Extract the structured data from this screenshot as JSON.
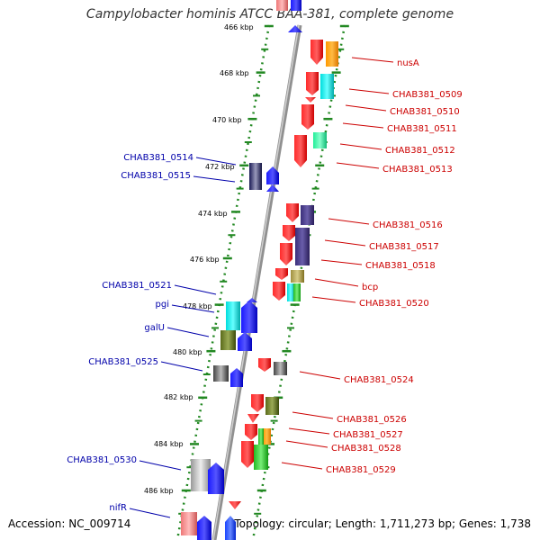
{
  "title": "Campylobacter hominis ATCC BAA-381, complete genome",
  "accession_label": "Accession: NC_009714",
  "summary_label": "Topology: circular; Length: 1,711,273 bp; Genes: 1,738",
  "colors": {
    "forward_label": "#cc0000",
    "reverse_label": "#0000aa",
    "backbone": "#909090",
    "tick": "#228822"
  },
  "ticks": [
    {
      "label": "466 kbp"
    },
    {
      "label": "468 kbp"
    },
    {
      "label": "470 kbp"
    },
    {
      "label": "472 kbp"
    },
    {
      "label": "474 kbp"
    },
    {
      "label": "476 kbp"
    },
    {
      "label": "478 kbp"
    },
    {
      "label": "480 kbp"
    },
    {
      "label": "482 kbp"
    },
    {
      "label": "484 kbp"
    },
    {
      "label": "486 kbp"
    }
  ],
  "forward_genes": [
    {
      "name": "nusA"
    },
    {
      "name": "CHAB381_0509"
    },
    {
      "name": "CHAB381_0510"
    },
    {
      "name": "CHAB381_0511"
    },
    {
      "name": "CHAB381_0512"
    },
    {
      "name": "CHAB381_0513"
    },
    {
      "name": "CHAB381_0516"
    },
    {
      "name": "CHAB381_0517"
    },
    {
      "name": "CHAB381_0518"
    },
    {
      "name": "bcp"
    },
    {
      "name": "CHAB381_0520"
    },
    {
      "name": "CHAB381_0524"
    },
    {
      "name": "CHAB381_0526"
    },
    {
      "name": "CHAB381_0527"
    },
    {
      "name": "CHAB381_0528"
    },
    {
      "name": "CHAB381_0529"
    }
  ],
  "reverse_genes": [
    {
      "name": "CHAB381_0514"
    },
    {
      "name": "CHAB381_0515"
    },
    {
      "name": "CHAB381_0521"
    },
    {
      "name": "pgi"
    },
    {
      "name": "galU"
    },
    {
      "name": "CHAB381_0525"
    },
    {
      "name": "CHAB381_0530"
    },
    {
      "name": "nifR"
    }
  ]
}
